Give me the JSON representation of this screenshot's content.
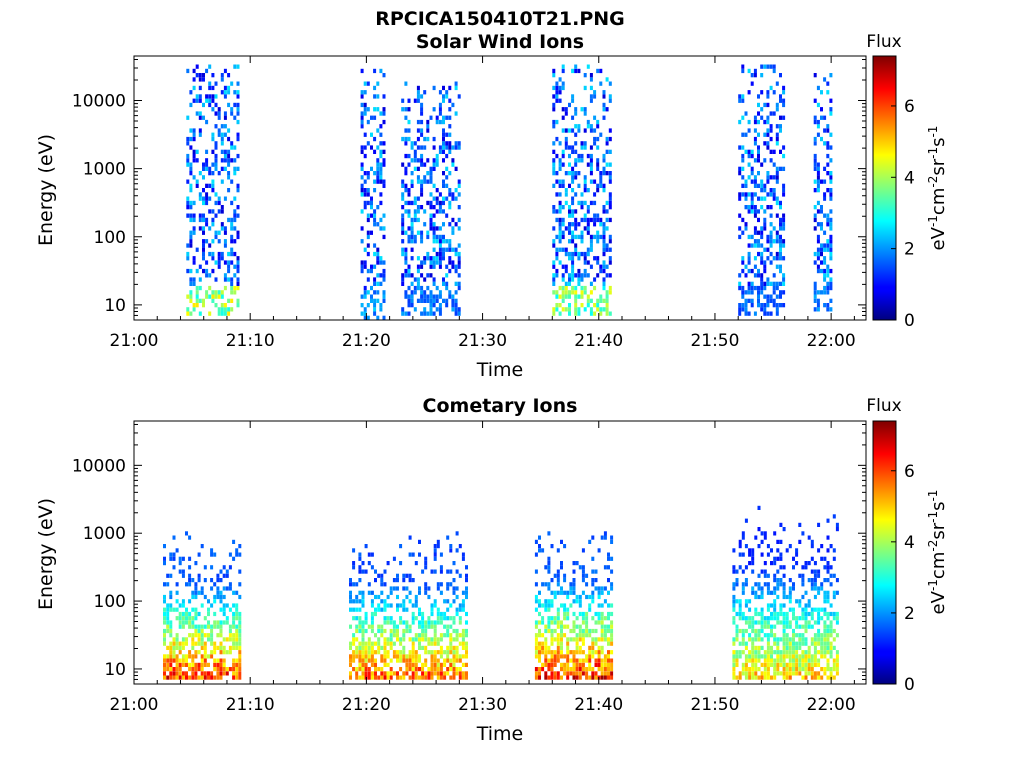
{
  "figure": {
    "filename_title": "RPCICA150410T21.PNG"
  },
  "panels": [
    {
      "title": "Solar Wind Ions",
      "xlabel": "Time",
      "ylabel": "Energy (eV)",
      "x_ticks": [
        "21:00",
        "21:10",
        "21:20",
        "21:30",
        "21:40",
        "21:50",
        "22:00"
      ],
      "y_ticks": [
        "10",
        "100",
        "1000",
        "10000"
      ],
      "colorbar": {
        "title": "Flux",
        "ticks": [
          "0",
          "2",
          "4",
          "6"
        ]
      }
    },
    {
      "title": "Cometary Ions",
      "xlabel": "Time",
      "ylabel": "Energy (eV)",
      "x_ticks": [
        "21:00",
        "21:10",
        "21:20",
        "21:30",
        "21:40",
        "21:50",
        "22:00"
      ],
      "y_ticks": [
        "10",
        "100",
        "1000",
        "10000"
      ],
      "colorbar": {
        "title": "Flux",
        "ticks": [
          "0",
          "2",
          "4",
          "6"
        ]
      }
    }
  ],
  "colorbar_unit": {
    "base": "eV",
    "e1": "-1",
    "b2": "cm",
    "e2": "-2",
    "b3": "sr",
    "e3": "-1",
    "b4": "s",
    "e4": "-1"
  },
  "chart_data": [
    {
      "type": "heatmap",
      "title": "Solar Wind Ions",
      "xlabel": "Time",
      "ylabel": "Energy (eV)",
      "x_range": [
        "21:00",
        "22:03"
      ],
      "y_scale": "log",
      "y_range": [
        6,
        45000
      ],
      "color_range": [
        0,
        7.4
      ],
      "colormap": "jet",
      "grid": false,
      "bursts": [
        {
          "t_start": "21:04.5",
          "t_end": "21:09.0",
          "e_min": 7,
          "e_max": 35000,
          "low_energy_peak": 4.8
        },
        {
          "t_start": "21:19.5",
          "t_end": "21:21.5",
          "e_min": 6,
          "e_max": 30000,
          "low_energy_peak": 2.5
        },
        {
          "t_start": "21:23.0",
          "t_end": "21:28.0",
          "e_min": 7,
          "e_max": 20000,
          "low_energy_peak": 2.2
        },
        {
          "t_start": "21:36.0",
          "t_end": "21:41.0",
          "e_min": 7,
          "e_max": 35000,
          "low_energy_peak": 4.6
        },
        {
          "t_start": "21:52.0",
          "t_end": "21:56.0",
          "e_min": 7,
          "e_max": 35000,
          "low_energy_peak": 2.0
        },
        {
          "t_start": "21:58.5",
          "t_end": "22:00.0",
          "e_min": 8,
          "e_max": 30000,
          "low_energy_peak": 2.2
        }
      ]
    },
    {
      "type": "heatmap",
      "title": "Cometary Ions",
      "xlabel": "Time",
      "ylabel": "Energy (eV)",
      "x_range": [
        "21:00",
        "22:03"
      ],
      "y_scale": "log",
      "y_range": [
        6,
        45000
      ],
      "color_range": [
        0,
        7.4
      ],
      "colormap": "jet",
      "grid": false,
      "bursts": [
        {
          "t_start": "21:02.5",
          "t_end": "21:09.0",
          "e_min": 7,
          "e_max": 1600,
          "low_energy_peak": 7.2
        },
        {
          "t_start": "21:18.5",
          "t_end": "21:28.5",
          "e_min": 7,
          "e_max": 1600,
          "low_energy_peak": 6.8
        },
        {
          "t_start": "21:34.5",
          "t_end": "21:41.0",
          "e_min": 7,
          "e_max": 1900,
          "low_energy_peak": 7.4
        },
        {
          "t_start": "21:51.5",
          "t_end": "22:00.5",
          "e_min": 7,
          "e_max": 4000,
          "low_energy_peak": 5.8
        }
      ]
    }
  ]
}
